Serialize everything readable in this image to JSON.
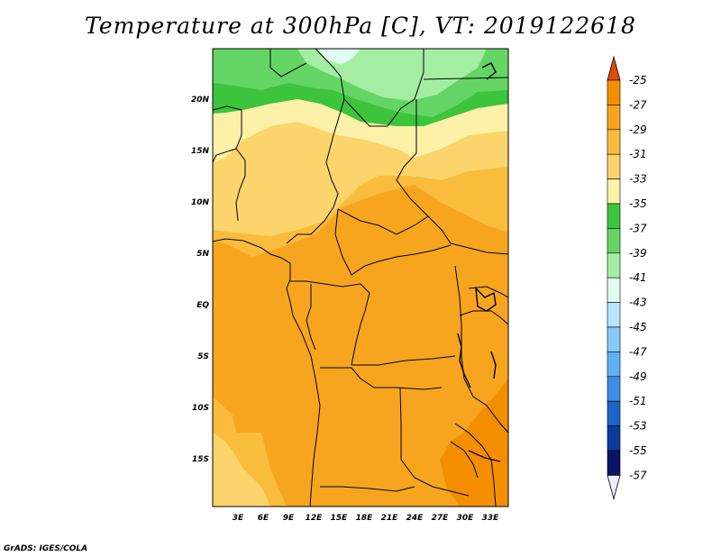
{
  "title": "Temperature at 300hPa [C], VT: 2019122618",
  "credit": "GrADS: IGES/COLA",
  "lat_labels": [
    "20N",
    "15N",
    "10N",
    "5N",
    "EQ",
    "5S",
    "10S",
    "15S"
  ],
  "lon_labels": [
    "3E",
    "6E",
    "9E",
    "12E",
    "15E",
    "18E",
    "21E",
    "24E",
    "27E",
    "30E",
    "33E"
  ],
  "colorbar": {
    "labels": [
      "-25",
      "-27",
      "-29",
      "-31",
      "-33",
      "-35",
      "-37",
      "-39",
      "-41",
      "-43",
      "-45",
      "-47",
      "-49",
      "-51",
      "-53",
      "-55",
      "-57"
    ],
    "colors": [
      "#e14b0a",
      "#f38e00",
      "#f7a51f",
      "#f9bc3d",
      "#fbd56b",
      "#fdf0a8",
      "#3cc43c",
      "#64d564",
      "#a4eea4",
      "#e0fef0",
      "#b4e4fe",
      "#8acafa",
      "#60b0f4",
      "#3c8ee6",
      "#1e64c8",
      "#0a3c9e",
      "#0a1466",
      "#eeeefe"
    ]
  }
}
